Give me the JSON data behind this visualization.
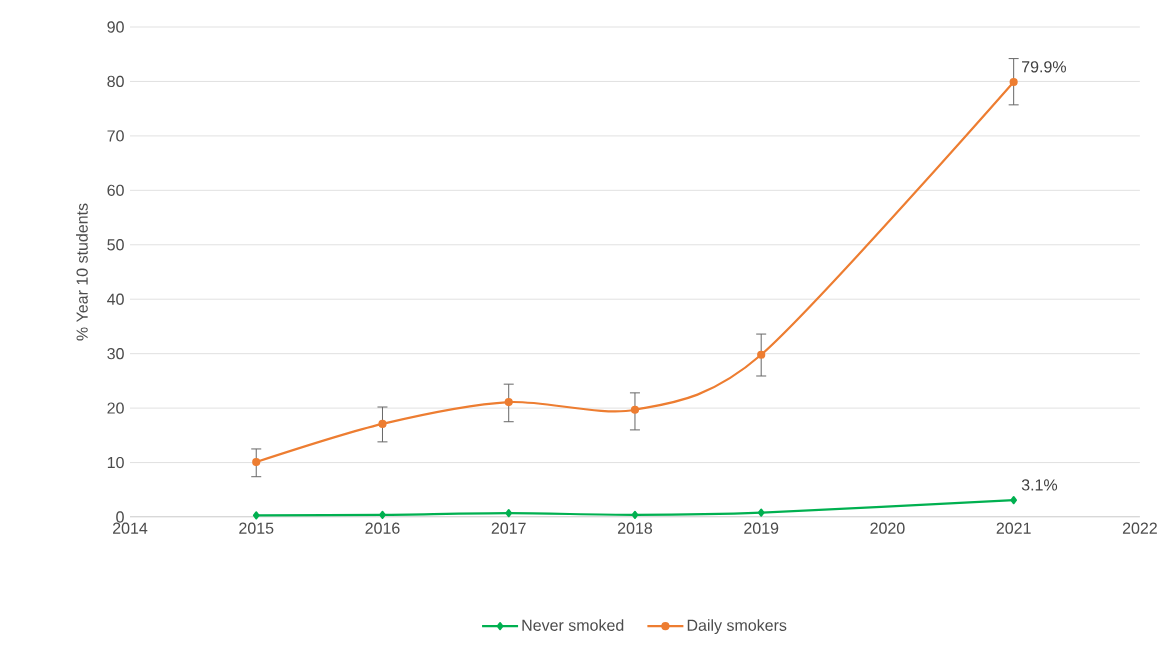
{
  "chart_data": {
    "type": "line",
    "ylabel": "% Year 10 students",
    "x": [
      2015,
      2016,
      2017,
      2018,
      2019,
      2021
    ],
    "series": [
      {
        "name": "Never smoked",
        "color": "#00b050",
        "marker": "diamond",
        "values": [
          0.3,
          0.4,
          0.7,
          0.4,
          0.8,
          3.1
        ],
        "value_labels": [
          null,
          null,
          null,
          null,
          null,
          "3.1%"
        ]
      },
      {
        "name": "Daily smokers",
        "color": "#ed7d31",
        "marker": "circle",
        "values": [
          10.1,
          17.1,
          21.1,
          19.7,
          29.8,
          79.9
        ],
        "value_labels": [
          null,
          null,
          null,
          null,
          null,
          "79.9%"
        ],
        "errors": [
          [
            7.4,
            12.5
          ],
          [
            13.8,
            20.2
          ],
          [
            17.5,
            24.4
          ],
          [
            16.0,
            22.8
          ],
          [
            25.9,
            33.6
          ],
          [
            75.7,
            84.2
          ]
        ]
      }
    ],
    "xlim": [
      2014,
      2022
    ],
    "xticks": [
      2014,
      2015,
      2016,
      2017,
      2018,
      2019,
      2020,
      2021,
      2022
    ],
    "ylim": [
      0,
      90
    ],
    "yticks": [
      0,
      10,
      20,
      30,
      40,
      50,
      60,
      70,
      80,
      90
    ],
    "grid": "y",
    "legend": "bottom",
    "line_style": "solid"
  }
}
